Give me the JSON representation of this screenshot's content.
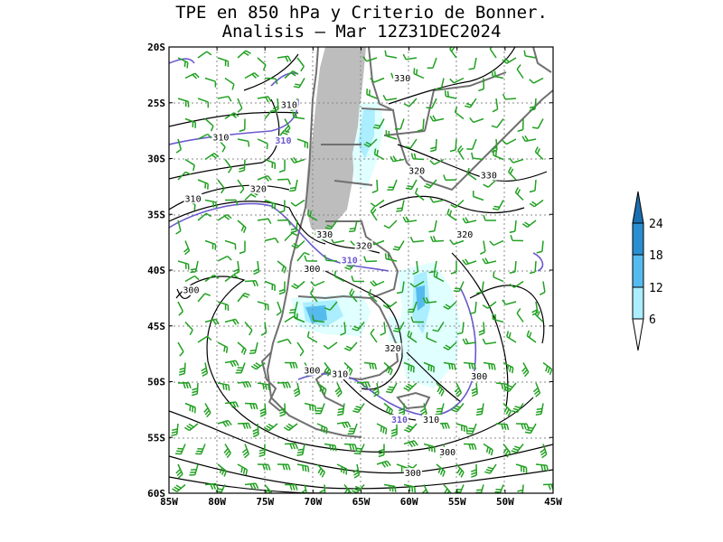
{
  "title": {
    "line1": "TPE en 850 hPa y Criterio de Bonner.",
    "line2": "Analisis – Mar 12Z31DEC2024"
  },
  "axes": {
    "lat_labels": [
      "20S",
      "25S",
      "30S",
      "35S",
      "40S",
      "45S",
      "50S",
      "55S",
      "60S"
    ],
    "lon_labels": [
      "85W",
      "80W",
      "75W",
      "70W",
      "65W",
      "60W",
      "55W",
      "50W",
      "45W"
    ],
    "lat_range": [
      -60,
      -20
    ],
    "lon_range": [
      -85,
      -45
    ],
    "grid": "dotted"
  },
  "colorbar": {
    "labels": [
      "6",
      "12",
      "18",
      "24"
    ],
    "colors": [
      "#e0ffff",
      "#aaeeff",
      "#55bbee",
      "#2a8fd0",
      "#1a6fb0"
    ]
  },
  "contour_labels": {
    "black": [
      {
        "text": "330",
        "lon": -60.7,
        "lat": -23.0
      },
      {
        "text": "320",
        "lon": -59.2,
        "lat": -31.3
      },
      {
        "text": "330",
        "lon": -51.7,
        "lat": -31.7
      },
      {
        "text": "320",
        "lon": -54.2,
        "lat": -37.0
      },
      {
        "text": "330",
        "lon": -68.8,
        "lat": -37.0
      },
      {
        "text": "320",
        "lon": -64.7,
        "lat": -38.0
      },
      {
        "text": "300",
        "lon": -70.1,
        "lat": -40.1
      },
      {
        "text": "300",
        "lon": -82.7,
        "lat": -42.0
      },
      {
        "text": "310",
        "lon": -82.5,
        "lat": -33.8
      },
      {
        "text": "320",
        "lon": -75.7,
        "lat": -32.9
      },
      {
        "text": "310",
        "lon": -79.6,
        "lat": -28.3
      },
      {
        "text": "310",
        "lon": -72.5,
        "lat": -25.4
      },
      {
        "text": "320",
        "lon": -61.7,
        "lat": -47.2
      },
      {
        "text": "300",
        "lon": -70.1,
        "lat": -49.2
      },
      {
        "text": "310",
        "lon": -67.2,
        "lat": -49.5
      },
      {
        "text": "300",
        "lon": -52.7,
        "lat": -49.7
      },
      {
        "text": "310",
        "lon": -57.7,
        "lat": -53.6
      },
      {
        "text": "300",
        "lon": -56.0,
        "lat": -56.5
      },
      {
        "text": "300",
        "lon": -59.6,
        "lat": -58.4
      }
    ],
    "blue": [
      {
        "text": "310",
        "lon": -73.1,
        "lat": -28.6
      },
      {
        "text": "310",
        "lon": -66.2,
        "lat": -39.3
      },
      {
        "text": "310",
        "lon": -61.0,
        "lat": -53.6
      }
    ]
  }
}
